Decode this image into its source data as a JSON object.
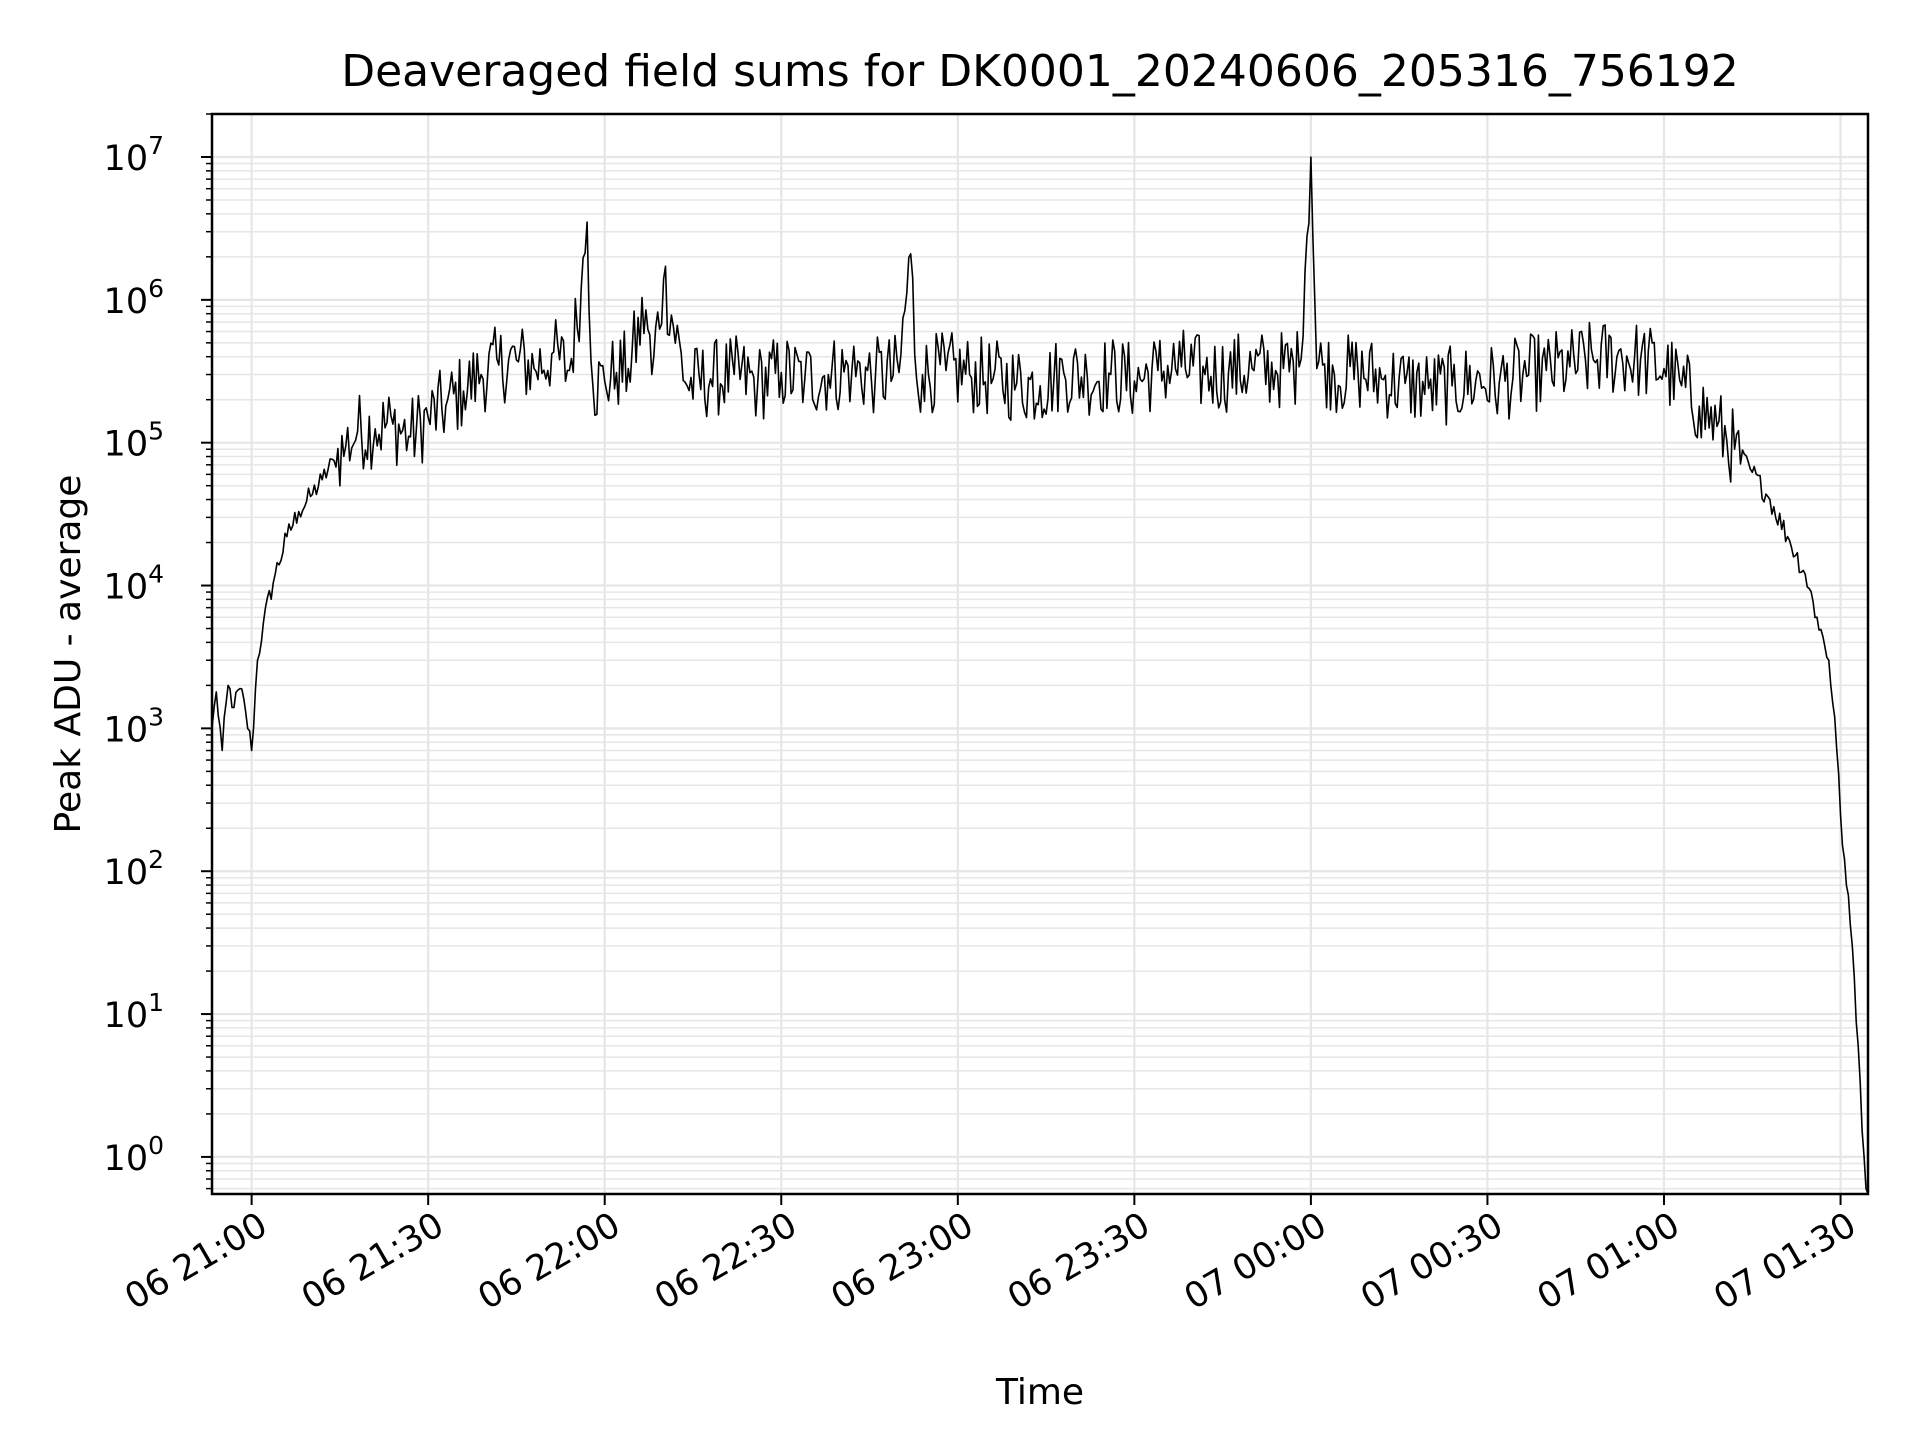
{
  "chart_data": {
    "type": "line",
    "title": "Deaveraged field sums for DK0001_20240606_205316_756192",
    "xlabel": "Time",
    "ylabel": "Peak ADU - average",
    "yscale": "log",
    "ylim": [
      0.55,
      20000000.0
    ],
    "xlim": [
      "2024-06-06 20:53:16",
      "2024-06-07 01:34:40"
    ],
    "grid": true,
    "x_ticks": [
      {
        "label": "06 21:00",
        "value": "2024-06-06 21:00"
      },
      {
        "label": "06 21:30",
        "value": "2024-06-06 21:30"
      },
      {
        "label": "06 22:00",
        "value": "2024-06-06 22:00"
      },
      {
        "label": "06 22:30",
        "value": "2024-06-06 22:30"
      },
      {
        "label": "06 23:00",
        "value": "2024-06-06 23:00"
      },
      {
        "label": "06 23:30",
        "value": "2024-06-06 23:30"
      },
      {
        "label": "07 00:00",
        "value": "2024-06-07 00:00"
      },
      {
        "label": "07 00:30",
        "value": "2024-06-07 00:30"
      },
      {
        "label": "07 01:00",
        "value": "2024-06-07 01:00"
      },
      {
        "label": "07 01:30",
        "value": "2024-06-07 01:30"
      }
    ],
    "y_ticks": [
      {
        "base": "10",
        "exp": "0",
        "value": 1
      },
      {
        "base": "10",
        "exp": "1",
        "value": 10
      },
      {
        "base": "10",
        "exp": "2",
        "value": 100
      },
      {
        "base": "10",
        "exp": "3",
        "value": 1000
      },
      {
        "base": "10",
        "exp": "4",
        "value": 10000
      },
      {
        "base": "10",
        "exp": "5",
        "value": 100000
      },
      {
        "base": "10",
        "exp": "6",
        "value": 1000000
      },
      {
        "base": "10",
        "exp": "7",
        "value": 10000000
      }
    ],
    "series": [
      {
        "color": "#000000",
        "x": [
          "2024-06-06 20:53:16",
          "2024-06-06 20:54",
          "2024-06-06 20:55",
          "2024-06-06 20:56",
          "2024-06-06 20:57",
          "2024-06-06 20:58",
          "2024-06-06 20:59",
          "2024-06-06 21:00",
          "2024-06-06 21:01",
          "2024-06-06 21:02",
          "2024-06-06 21:04",
          "2024-06-06 21:06",
          "2024-06-06 21:08",
          "2024-06-06 21:10",
          "2024-06-06 21:12",
          "2024-06-06 21:14",
          "2024-06-06 21:16",
          "2024-06-06 21:18",
          "2024-06-06 21:21",
          "2024-06-06 21:24",
          "2024-06-06 21:27",
          "2024-06-06 21:30",
          "2024-06-06 21:33",
          "2024-06-06 21:36",
          "2024-06-06 21:39",
          "2024-06-06 21:42",
          "2024-06-06 21:45",
          "2024-06-06 21:48",
          "2024-06-06 21:51",
          "2024-06-06 21:54",
          "2024-06-06 21:56",
          "2024-06-06 21:57",
          "2024-06-06 21:58",
          "2024-06-06 22:00",
          "2024-06-06 22:02",
          "2024-06-06 22:04",
          "2024-06-06 22:07",
          "2024-06-06 22:08",
          "2024-06-06 22:10",
          "2024-06-06 22:14",
          "2024-06-06 22:18",
          "2024-06-06 22:22",
          "2024-06-06 22:26",
          "2024-06-06 22:30",
          "2024-06-06 22:34",
          "2024-06-06 22:38",
          "2024-06-06 22:42",
          "2024-06-06 22:46",
          "2024-06-06 22:50",
          "2024-06-06 22:52",
          "2024-06-06 22:53",
          "2024-06-06 22:54",
          "2024-06-06 22:58",
          "2024-06-06 23:02",
          "2024-06-06 23:06",
          "2024-06-06 23:10",
          "2024-06-06 23:14",
          "2024-06-06 23:18",
          "2024-06-06 23:22",
          "2024-06-06 23:26",
          "2024-06-06 23:30",
          "2024-06-06 23:34",
          "2024-06-06 23:38",
          "2024-06-06 23:42",
          "2024-06-06 23:46",
          "2024-06-06 23:50",
          "2024-06-06 23:54",
          "2024-06-06 23:58",
          "2024-06-07 00:00",
          "2024-06-07 00:01",
          "2024-06-07 00:02",
          "2024-06-07 00:04",
          "2024-06-07 00:08",
          "2024-06-07 00:12",
          "2024-06-07 00:16",
          "2024-06-07 00:20",
          "2024-06-07 00:24",
          "2024-06-07 00:28",
          "2024-06-07 00:32",
          "2024-06-07 00:36",
          "2024-06-07 00:40",
          "2024-06-07 00:44",
          "2024-06-07 00:48",
          "2024-06-07 00:52",
          "2024-06-07 00:56",
          "2024-06-07 01:00",
          "2024-06-07 01:03",
          "2024-06-07 01:06",
          "2024-06-07 01:09",
          "2024-06-07 01:12",
          "2024-06-07 01:15",
          "2024-06-07 01:18",
          "2024-06-07 01:21",
          "2024-06-07 01:24",
          "2024-06-07 01:26",
          "2024-06-07 01:28",
          "2024-06-07 01:29",
          "2024-06-07 01:30",
          "2024-06-07 01:31",
          "2024-06-07 01:32",
          "2024-06-07 01:33",
          "2024-06-07 01:34",
          "2024-06-07 01:34:20",
          "2024-06-07 01:34:40"
        ],
        "y": [
          1000,
          1800,
          700,
          2000,
          1400,
          1900,
          1300,
          700,
          3000,
          5500,
          12000,
          22000,
          33000,
          42000,
          55000,
          75000,
          95000,
          120000,
          125000,
          135000,
          110000,
          150000,
          180000,
          230000,
          300000,
          350000,
          380000,
          330000,
          420000,
          320000,
          1200000,
          3500000,
          250000,
          270000,
          310000,
          330000,
          850000,
          300000,
          1400000,
          250000,
          280000,
          300000,
          260000,
          310000,
          280000,
          300000,
          320000,
          290000,
          310000,
          2100000,
          280000,
          300000,
          320000,
          300000,
          280000,
          260000,
          250000,
          310000,
          290000,
          300000,
          270000,
          320000,
          340000,
          300000,
          310000,
          330000,
          320000,
          340000,
          10000000,
          330000,
          350000,
          300000,
          310000,
          280000,
          260000,
          240000,
          250000,
          270000,
          260000,
          300000,
          320000,
          340000,
          380000,
          400000,
          380000,
          330000,
          250000,
          180000,
          130000,
          90000,
          62000,
          40000,
          22000,
          12000,
          6000,
          3000,
          1200,
          250,
          80,
          30,
          6,
          1,
          0.6,
          0.55
        ]
      }
    ]
  }
}
